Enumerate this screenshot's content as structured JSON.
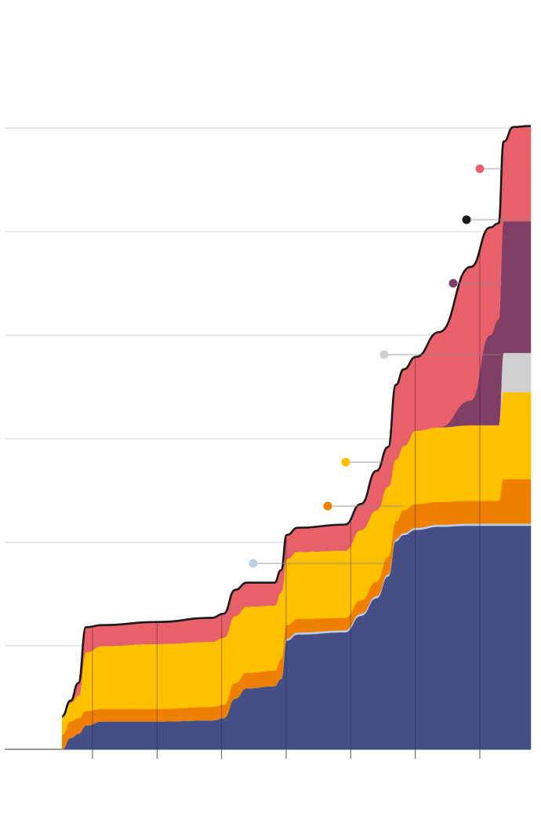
{
  "chart_data": {
    "type": "stacked_area",
    "x": [
      0.53,
      0.66,
      0.78,
      0.9,
      1.15,
      2.0,
      2.85,
      3.03,
      3.21,
      3.39,
      3.82,
      3.92,
      4.01,
      4.18,
      4.91,
      5.16,
      5.4,
      5.58,
      5.7,
      5.82,
      6.01,
      6.37,
      6.86,
      7.16,
      7.29,
      7.37,
      7.52,
      7.79
    ],
    "series": [
      {
        "color": "#454f86",
        "values": [
          0,
          0.11,
          0.15,
          0.23,
          0.27,
          0.27,
          0.28,
          0.3,
          0.49,
          0.59,
          0.61,
          0.68,
          1.05,
          1.11,
          1.13,
          1.29,
          1.46,
          1.67,
          2.01,
          2.07,
          2.12,
          2.15,
          2.16,
          2.16,
          2.16,
          2.16,
          2.16,
          2.16
        ]
      },
      {
        "color": "#bccfe9",
        "values": [
          0,
          0,
          0,
          0,
          0,
          0,
          0,
          0,
          0,
          0,
          0,
          0,
          0.02,
          0.02,
          0.02,
          0.02,
          0.02,
          0.02,
          0.02,
          0.02,
          0.02,
          0.02,
          0.02,
          0.02,
          0.02,
          0.02,
          0.02,
          0.02
        ]
      },
      {
        "color": "#ef7f00",
        "values": [
          0.14,
          0.16,
          0.15,
          0.14,
          0.12,
          0.12,
          0.13,
          0.13,
          0.15,
          0.15,
          0.15,
          0.19,
          0.13,
          0.13,
          0.12,
          0.13,
          0.14,
          0.17,
          0.17,
          0.22,
          0.23,
          0.22,
          0.22,
          0.22,
          0.22,
          0.43,
          0.43,
          0.43
        ]
      },
      {
        "color": "#ffc000",
        "values": [
          0.18,
          0.18,
          0.22,
          0.57,
          0.61,
          0.63,
          0.63,
          0.65,
          0.65,
          0.64,
          0.63,
          0.65,
          0.64,
          0.65,
          0.65,
          0.68,
          0.69,
          0.68,
          0.6,
          0.62,
          0.71,
          0.72,
          0.73,
          0.73,
          0.73,
          0.84,
          0.84,
          0.84
        ]
      },
      {
        "color": "#d0d0d0",
        "values": [
          0,
          0,
          0,
          0,
          0,
          0,
          0,
          0,
          0,
          0,
          0,
          0,
          0,
          0,
          0,
          0,
          0,
          0,
          0,
          0,
          0,
          0,
          0,
          0,
          0,
          0.38,
          0.38,
          0.38
        ]
      },
      {
        "color": "#823f66",
        "values": [
          0,
          0,
          0,
          0,
          0,
          0,
          0,
          0,
          0,
          0,
          0,
          0,
          0,
          0,
          0,
          0,
          0,
          0,
          0,
          0,
          0,
          0,
          0.24,
          0.87,
          1.02,
          1.27,
          1.27,
          1.27
        ]
      },
      {
        "color": "#e8606a",
        "values": [
          0,
          0.02,
          0.12,
          0.24,
          0.2,
          0.21,
          0.23,
          0.23,
          0.25,
          0.23,
          0.22,
          0.21,
          0.23,
          0.23,
          0.25,
          0.25,
          0.38,
          0.38,
          0.72,
          0.74,
          0.71,
          0.92,
          1.29,
          1.04,
          0.93,
          0.77,
          0.91,
          0.92
        ]
      }
    ],
    "outline_color": "#1a1a1a",
    "xlim": [
      -0.36,
      7.79
    ],
    "xticks": [
      1,
      2,
      3,
      4,
      5,
      6,
      7
    ],
    "ylim": [
      0,
      6.1
    ],
    "yticks": [
      0,
      1,
      2,
      3,
      4,
      5,
      6
    ],
    "grid": true
  }
}
